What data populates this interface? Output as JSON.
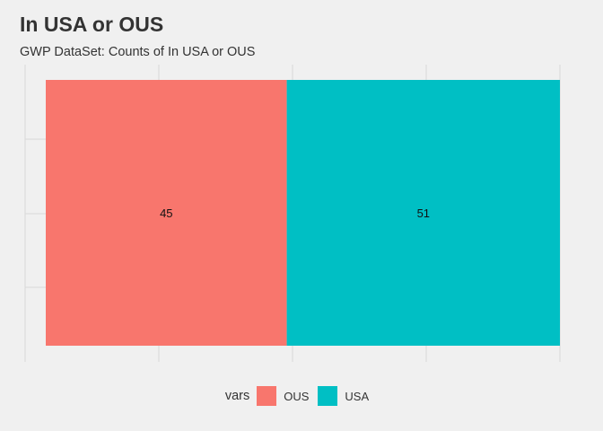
{
  "chart_data": {
    "type": "bar",
    "orientation": "stacked-horizontal-fill",
    "title": "In USA or OUS",
    "subtitle": "GWP DataSet: Counts of In USA or OUS",
    "xlabel": "",
    "ylabel": "",
    "legend_title": "vars",
    "legend_position": "bottom",
    "grid": true,
    "series": [
      {
        "name": "OUS",
        "value": 45,
        "color": "#F8766D"
      },
      {
        "name": "USA",
        "value": 51,
        "color": "#00BFC4"
      }
    ]
  }
}
